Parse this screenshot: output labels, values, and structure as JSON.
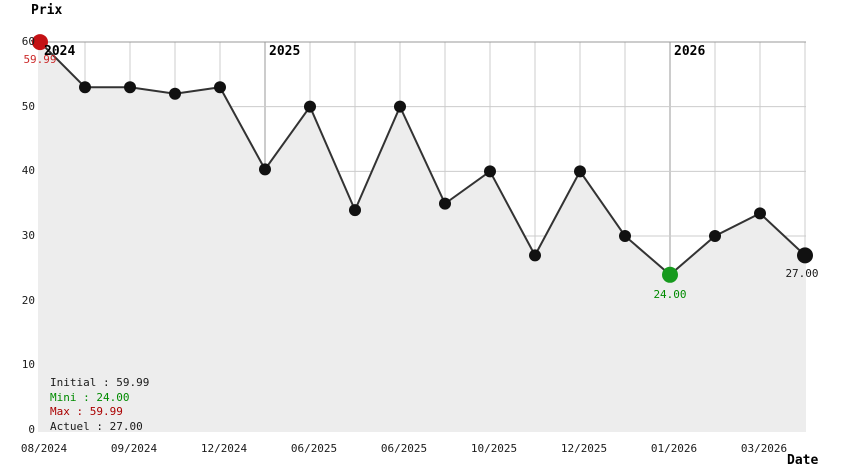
{
  "chart_data": {
    "type": "line",
    "ylabel": "Prix",
    "xlabel": "Date",
    "ylim": [
      0,
      60
    ],
    "grid": true,
    "legend_position": "bottom-left",
    "y_ticks": [
      {
        "label": "0",
        "value": 0
      },
      {
        "label": "10",
        "value": 10
      },
      {
        "label": "20",
        "value": 20
      },
      {
        "label": "30",
        "value": 30
      },
      {
        "label": "40",
        "value": 40
      },
      {
        "label": "50",
        "value": 50
      },
      {
        "label": "60",
        "value": 60
      }
    ],
    "points": [
      {
        "value": 59.99,
        "x_tick": "08/2024",
        "marker": "start",
        "point_label": "59.99",
        "year_start": "2024"
      },
      {
        "value": 53
      },
      {
        "value": 53,
        "x_tick": "09/2024"
      },
      {
        "value": 52
      },
      {
        "value": 53,
        "x_tick": "12/2024"
      },
      {
        "value": 40.3,
        "year_start": "2025"
      },
      {
        "value": 50,
        "x_tick": "06/2025"
      },
      {
        "value": 34
      },
      {
        "value": 50,
        "x_tick": "06/2025"
      },
      {
        "value": 35
      },
      {
        "value": 40,
        "x_tick": "10/2025"
      },
      {
        "value": 27
      },
      {
        "value": 40,
        "x_tick": "12/2025"
      },
      {
        "value": 30
      },
      {
        "value": 24,
        "x_tick": "01/2026",
        "marker": "min",
        "point_label": "24.00",
        "year_start": "2026"
      },
      {
        "value": 30
      },
      {
        "value": 33.5,
        "x_tick": "03/2026"
      },
      {
        "value": 27,
        "marker": "current",
        "point_label": "27.00"
      }
    ]
  },
  "legend": {
    "initial": "Initial : 59.99",
    "mini": "Mini : 24.00",
    "max": "Max : 59.99",
    "actuel": "Actuel : 27.00"
  },
  "colors": {
    "line": "#333333",
    "dot": "#111111",
    "start_dot": "#c41114",
    "min_dot": "#179a1e",
    "current_dot": "#111111",
    "grid": "#cccccc",
    "year_grid": "#999999",
    "area_fill": "#ededed",
    "red_text": "#cc2a2a",
    "max_text": "#aa0000",
    "green_text": "#008b00",
    "black_text": "#1a1a1a"
  }
}
